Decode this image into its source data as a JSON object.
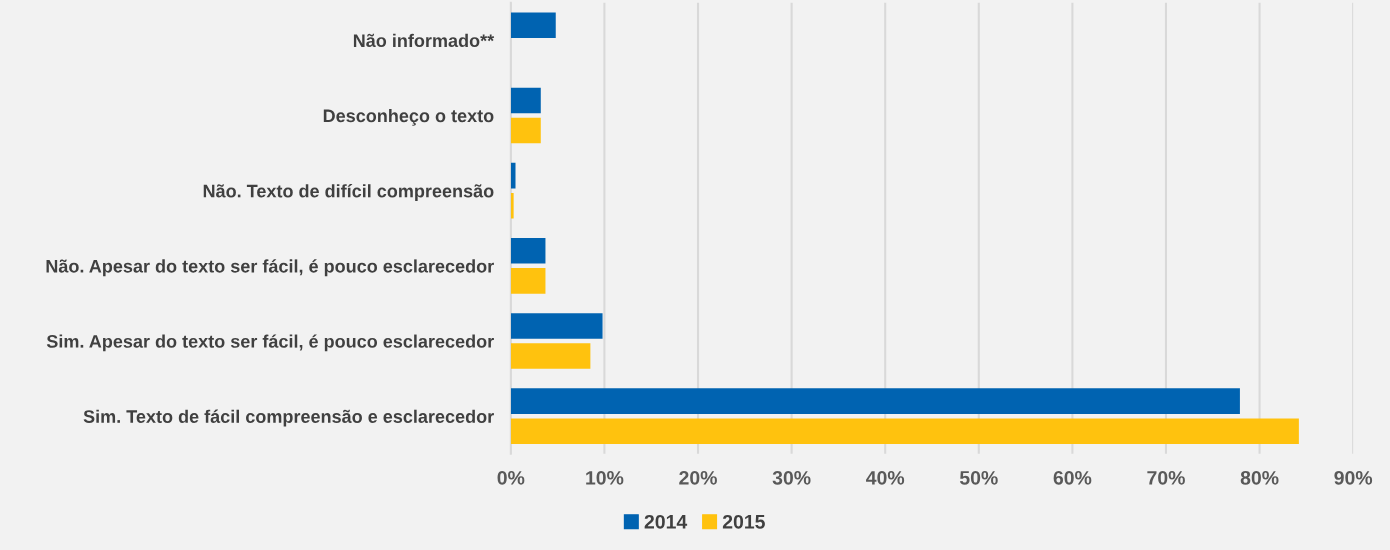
{
  "chart_data": {
    "type": "bar",
    "orientation": "horizontal",
    "categories": [
      "Não informado**",
      "Desconheço o texto",
      "Não. Texto de difícil compreensão",
      "Não. Apesar do texto ser fácil, é pouco esclarecedor",
      "Sim. Apesar do texto ser fácil, é pouco esclarecedor",
      "Sim. Texto de fácil compreensão e esclarecedor"
    ],
    "series": [
      {
        "name": "2014",
        "color": "#0063b1",
        "values": [
          4.8,
          3.2,
          0.5,
          3.7,
          9.8,
          77.9
        ]
      },
      {
        "name": "2015",
        "color": "#ffc20e",
        "values": [
          null,
          3.2,
          0.3,
          3.7,
          8.5,
          84.2
        ]
      }
    ],
    "xlim": [
      0,
      90
    ],
    "xticks": [
      {
        "value": 0,
        "label": "0%"
      },
      {
        "value": 10,
        "label": "10%"
      },
      {
        "value": 20,
        "label": "20%"
      },
      {
        "value": 30,
        "label": "30%"
      },
      {
        "value": 40,
        "label": "40%"
      },
      {
        "value": 50,
        "label": "50%"
      },
      {
        "value": 60,
        "label": "60%"
      },
      {
        "value": 70,
        "label": "70%"
      },
      {
        "value": 80,
        "label": "80%"
      },
      {
        "value": 90,
        "label": "90%"
      }
    ],
    "grid": "x",
    "legend": "bottom"
  }
}
